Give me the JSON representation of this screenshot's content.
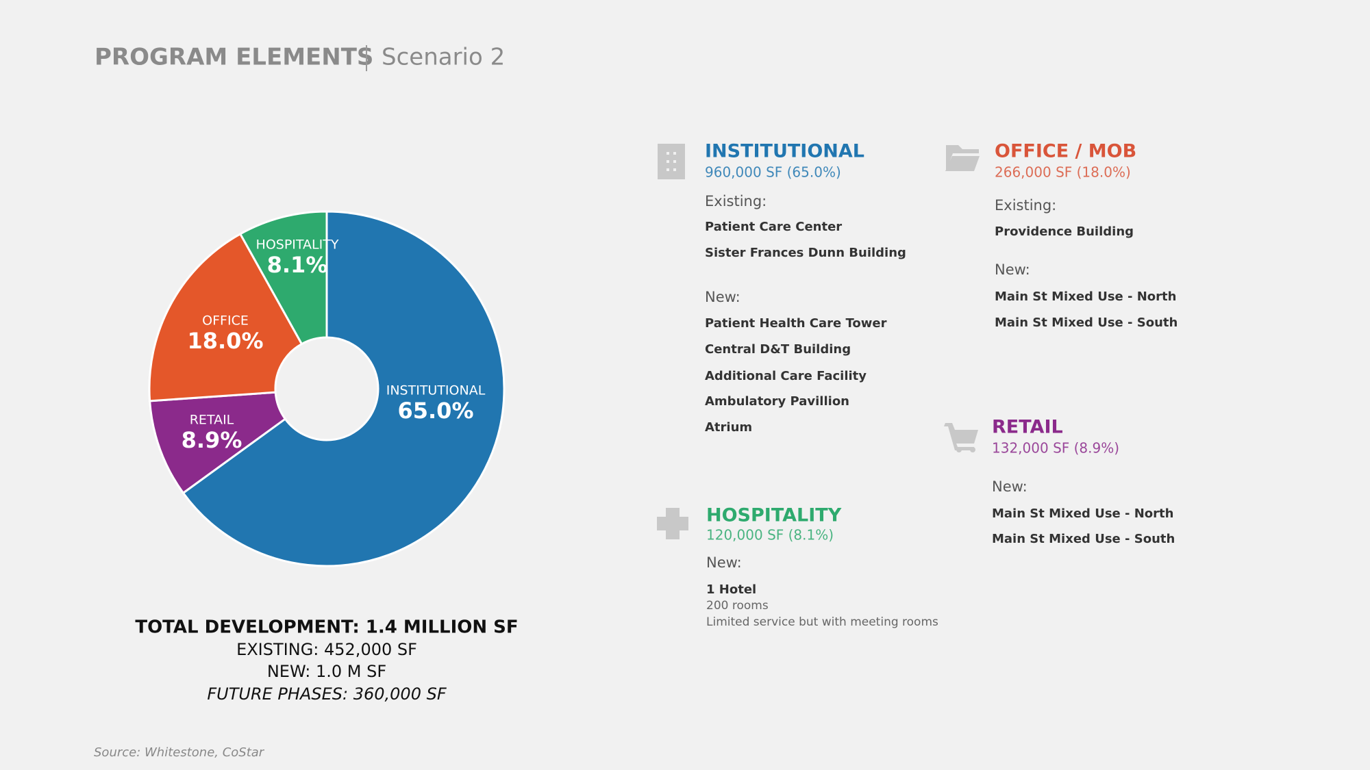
{
  "header": {
    "title": "PROGRAM ELEMENTS",
    "subtitle": "Scenario 2"
  },
  "chart_data": {
    "type": "donut",
    "categories": [
      "INSTITUTIONAL",
      "RETAIL",
      "OFFICE",
      "HOSPITALITY"
    ],
    "values": [
      65.0,
      8.9,
      18.0,
      8.1
    ],
    "value_labels": [
      "65.0%",
      "8.9%",
      "18.0%",
      "8.1%"
    ],
    "colors": [
      "#2176b0",
      "#8b2a8b",
      "#e4572a",
      "#2eaa6e"
    ]
  },
  "summary": {
    "total": "TOTAL DEVELOPMENT: 1.4 MILLION SF",
    "existing": "EXISTING: 452,000 SF",
    "new": "NEW: 1.0 M SF",
    "future": "FUTURE PHASES: 360,000 SF"
  },
  "blocks": [
    {
      "title": "INSTITUTIONAL",
      "subtitle": "960,000 SF (65.0%)",
      "color": "#2176b0",
      "groups": [
        {
          "label": "Existing:",
          "items": [
            "Patient Care Center",
            "Sister Frances Dunn Building"
          ]
        },
        {
          "label": "New:",
          "items": [
            "Patient Health Care Tower",
            "Central D&T Building",
            "Additional Care Facility",
            "Ambulatory Pavillion",
            "Atrium"
          ]
        }
      ]
    },
    {
      "title": "OFFICE / MOB",
      "subtitle": "266,000 SF (18.0%)",
      "color": "#d9553a",
      "groups": [
        {
          "label": "Existing:",
          "items": [
            "Providence Building"
          ]
        },
        {
          "label": "New:",
          "items": [
            "Main St Mixed Use - North",
            "Main St Mixed Use - South"
          ]
        }
      ]
    },
    {
      "title": "HOSPITALITY",
      "subtitle": "120,000 SF (8.1%)",
      "color": "#2eaa6e",
      "groups": [
        {
          "label": "New:",
          "items": [
            "1 Hotel"
          ],
          "notes": [
            "200 rooms",
            "Limited service but with meeting rooms"
          ]
        }
      ]
    },
    {
      "title": "RETAIL",
      "subtitle": "132,000 SF (8.9%)",
      "color": "#8b2a8b",
      "groups": [
        {
          "label": "New:",
          "items": [
            "Main St Mixed Use - North",
            "Main St Mixed Use - South"
          ]
        }
      ]
    }
  ],
  "source": "Source: Whitestone, CoStar"
}
